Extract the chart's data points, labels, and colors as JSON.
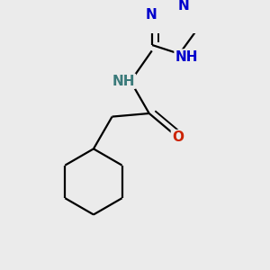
{
  "background_color": "#ebebeb",
  "atom_colors": {
    "C": "#000000",
    "N_blue": "#0000cc",
    "O": "#cc2200",
    "NH_teal": "#3a7a7a",
    "NH_blue": "#0000cc"
  },
  "bond_color": "#000000",
  "bond_width": 1.6,
  "font_size": 11,
  "font_size_small": 10
}
